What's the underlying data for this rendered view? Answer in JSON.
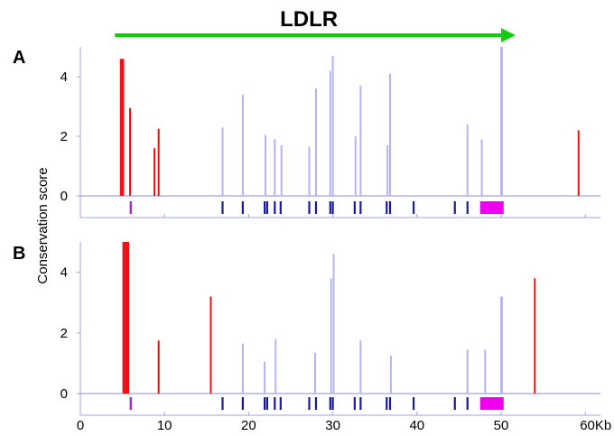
{
  "chart_data": {
    "type": "bar",
    "gene_label": "LDLR",
    "ylabel": "Conservation score",
    "x_unit": "Kb",
    "x_ticks": [
      0,
      10,
      20,
      30,
      40,
      50,
      60
    ],
    "x_tick_labels": [
      "0",
      "10",
      "20",
      "30",
      "40",
      "50",
      "60Kb"
    ],
    "xlim": [
      0,
      62
    ],
    "ylim": [
      0,
      5
    ],
    "y_ticks": [
      0,
      2,
      4
    ],
    "y_tick_labels": [
      "0",
      "2",
      "4"
    ],
    "gene_span": [
      4.1,
      51.5
    ],
    "colors": {
      "highlight": "#ee1111",
      "conserved": "#b4b4f0",
      "exon": "#1a1a99",
      "utr": "#ee00ee",
      "start": "#9933cc",
      "axis": "#a0a0e6",
      "arrow": "#11cc11"
    },
    "exons": [
      6.0,
      16.9,
      19.3,
      21.9,
      22.2,
      23.1,
      23.8,
      27.2,
      28.0,
      29.7,
      30.0,
      32.6,
      33.3,
      36.4,
      36.8,
      39.6,
      44.5,
      46.0
    ],
    "start_marker": 6.0,
    "utr_block": [
      47.5,
      50.3
    ],
    "panels": [
      {
        "label": "A",
        "series": [
          {
            "role": "highlight",
            "bars": [
              {
                "x": 4.7,
                "x2": 5.2,
                "y": 4.6
              },
              {
                "x": 5.9,
                "y": 2.95
              },
              {
                "x": 8.8,
                "y": 1.6
              },
              {
                "x": 9.3,
                "y": 2.25
              },
              {
                "x": 59.2,
                "y": 2.2
              }
            ]
          },
          {
            "role": "conserved",
            "bars": [
              {
                "x": 16.9,
                "y": 2.3
              },
              {
                "x": 19.3,
                "y": 3.4
              },
              {
                "x": 22.0,
                "y": 2.05
              },
              {
                "x": 23.1,
                "y": 1.9
              },
              {
                "x": 23.9,
                "y": 1.7
              },
              {
                "x": 27.2,
                "y": 1.65
              },
              {
                "x": 28.0,
                "y": 3.6
              },
              {
                "x": 29.7,
                "y": 4.2
              },
              {
                "x": 30.0,
                "y": 4.7
              },
              {
                "x": 32.7,
                "y": 2.0
              },
              {
                "x": 33.3,
                "y": 3.7
              },
              {
                "x": 36.5,
                "y": 1.7
              },
              {
                "x": 36.8,
                "y": 4.1
              },
              {
                "x": 46.0,
                "y": 2.4
              },
              {
                "x": 47.7,
                "y": 1.9
              },
              {
                "x": 49.9,
                "x2": 50.2,
                "y": 5.0
              }
            ]
          }
        ]
      },
      {
        "label": "B",
        "series": [
          {
            "role": "highlight",
            "bars": [
              {
                "x": 5.0,
                "x2": 5.8,
                "y": 5.0
              },
              {
                "x": 9.3,
                "y": 1.75
              },
              {
                "x": 15.5,
                "y": 3.2
              },
              {
                "x": 54.0,
                "y": 3.8
              }
            ]
          },
          {
            "role": "conserved",
            "bars": [
              {
                "x": 19.3,
                "y": 1.65
              },
              {
                "x": 21.9,
                "y": 1.05
              },
              {
                "x": 23.2,
                "y": 1.8
              },
              {
                "x": 27.9,
                "y": 1.35
              },
              {
                "x": 29.8,
                "y": 3.8
              },
              {
                "x": 30.1,
                "y": 4.6
              },
              {
                "x": 33.3,
                "y": 1.75
              },
              {
                "x": 36.9,
                "y": 1.25
              },
              {
                "x": 46.0,
                "y": 1.45
              },
              {
                "x": 48.1,
                "y": 1.45
              },
              {
                "x": 49.9,
                "x2": 50.2,
                "y": 3.2
              }
            ]
          }
        ]
      }
    ]
  }
}
